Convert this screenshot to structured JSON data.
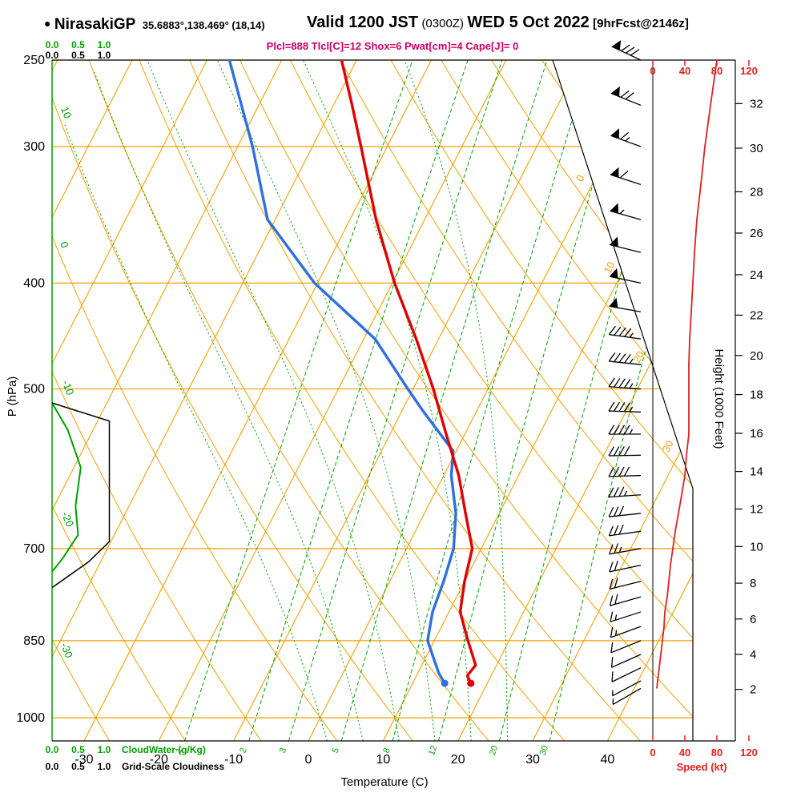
{
  "header": {
    "station_bullet": "●",
    "station_name": "NirasakiGP",
    "station_coords": "35.6883°,138.469° (18,14)",
    "valid_main": "Valid 1200 JST",
    "valid_z": "(0300Z)",
    "valid_date": "WED 5 Oct 2022",
    "valid_fcst": "[9hrFcst@2146z]",
    "params_line": "Plcl=888 Tlcl[C]=12 Shox=6 Pwat[cm]=4 Cape[J]= 0"
  },
  "axes": {
    "pressure_label": "P (hPa)",
    "pressure_ticks": [
      250,
      300,
      400,
      500,
      700,
      850,
      1000
    ],
    "temp_label": "Temperature (C)",
    "temp_ticks": [
      -30,
      -20,
      -10,
      0,
      10,
      20,
      30,
      40
    ],
    "height_label": "Height (1000 Feet)",
    "height_ticks": [
      2,
      4,
      6,
      8,
      10,
      12,
      14,
      16,
      18,
      20,
      22,
      24,
      26,
      28,
      30,
      32
    ],
    "speed_label": "Speed (kt)",
    "speed_ticks": [
      0,
      40,
      80,
      120
    ],
    "cloudwater_scale": [
      "0.0",
      "0.5",
      "1.0"
    ],
    "cloudwater_label": "CloudWater (g/Kg)",
    "cloudiness_label": "Grid-Scale Cloudiness",
    "isotherm_edge_labels": [
      0,
      10,
      20,
      30
    ],
    "dry_adiabat_edge_labels": [
      10,
      0,
      -10,
      -20,
      -30
    ],
    "mixing_ratio_labels": [
      1,
      2,
      3,
      5,
      8,
      12,
      20,
      30
    ]
  },
  "colors": {
    "grid_orange": "#f0a000",
    "green": "#00a000",
    "temp_red": "#e00000",
    "dew_blue": "#2f6fdf",
    "magenta": "#cc0066",
    "speed_red": "#e02020",
    "black": "#000000"
  },
  "chart_data": {
    "type": "line",
    "subtype": "skew-t-log-p-sounding",
    "pressure_hpa_range": [
      250,
      1050
    ],
    "temperature_profile": [
      [
        930,
        17.8
      ],
      [
        915,
        16.8
      ],
      [
        895,
        17.2
      ],
      [
        850,
        14.5
      ],
      [
        800,
        11.5
      ],
      [
        750,
        10.0
      ],
      [
        700,
        8.8
      ],
      [
        650,
        5.5
      ],
      [
        600,
        2.0
      ],
      [
        550,
        -2.5
      ],
      [
        500,
        -7.3
      ],
      [
        450,
        -13.0
      ],
      [
        400,
        -19.7
      ],
      [
        350,
        -26.5
      ],
      [
        300,
        -33.5
      ],
      [
        275,
        -37.5
      ],
      [
        250,
        -42.0
      ]
    ],
    "dewpoint_profile": [
      [
        930,
        14.3
      ],
      [
        910,
        12.8
      ],
      [
        850,
        9.1
      ],
      [
        800,
        7.8
      ],
      [
        750,
        7.2
      ],
      [
        700,
        6.3
      ],
      [
        650,
        4.2
      ],
      [
        600,
        1.0
      ],
      [
        570,
        -0.4
      ],
      [
        525,
        -7.0
      ],
      [
        500,
        -10.7
      ],
      [
        450,
        -18.5
      ],
      [
        400,
        -30.4
      ],
      [
        350,
        -41.0
      ],
      [
        300,
        -48.0
      ],
      [
        250,
        -57.0
      ]
    ],
    "surface_temp_point": [
      930,
      17.8
    ],
    "surface_dew_point": [
      930,
      14.3
    ],
    "winds": [
      [
        250,
        295,
        80
      ],
      [
        275,
        292,
        72
      ],
      [
        300,
        290,
        65
      ],
      [
        325,
        288,
        60
      ],
      [
        350,
        286,
        55
      ],
      [
        375,
        284,
        52
      ],
      [
        400,
        282,
        50
      ],
      [
        425,
        280,
        48
      ],
      [
        450,
        278,
        46
      ],
      [
        475,
        276,
        45
      ],
      [
        500,
        274,
        45
      ],
      [
        525,
        272,
        45
      ],
      [
        550,
        270,
        45
      ],
      [
        575,
        269,
        42
      ],
      [
        600,
        268,
        40
      ],
      [
        625,
        266,
        36
      ],
      [
        650,
        264,
        32
      ],
      [
        675,
        262,
        28
      ],
      [
        700,
        260,
        25
      ],
      [
        725,
        258,
        22
      ],
      [
        750,
        256,
        20
      ],
      [
        775,
        254,
        18
      ],
      [
        800,
        252,
        15
      ],
      [
        825,
        250,
        14
      ],
      [
        850,
        248,
        12
      ],
      [
        875,
        246,
        10
      ],
      [
        900,
        244,
        8
      ],
      [
        925,
        242,
        6
      ],
      [
        940,
        240,
        5
      ]
    ],
    "cloud_water_gkg": [
      [
        515,
        0
      ],
      [
        545,
        0.3
      ],
      [
        590,
        0.55
      ],
      [
        640,
        0.45
      ],
      [
        680,
        0.5
      ],
      [
        715,
        0.2
      ],
      [
        735,
        0
      ]
    ],
    "grid_scale_cloudiness": [
      [
        515,
        0
      ],
      [
        535,
        1.1
      ],
      [
        690,
        1.1
      ],
      [
        720,
        0.7
      ],
      [
        760,
        0
      ]
    ],
    "isobars": [
      250,
      300,
      400,
      500,
      700,
      850,
      1000
    ],
    "isotherm_step_c": 10,
    "dry_adiabats_c": [
      -40,
      -30,
      -20,
      -10,
      0,
      10,
      20,
      30,
      40,
      50,
      60,
      70,
      80,
      90,
      100,
      110,
      120,
      130
    ],
    "moist_adiabats_c": [
      0,
      5,
      10,
      15,
      20,
      25
    ],
    "mixing_ratio_gkg": [
      1,
      2,
      3,
      5,
      8,
      12,
      20,
      30
    ]
  }
}
